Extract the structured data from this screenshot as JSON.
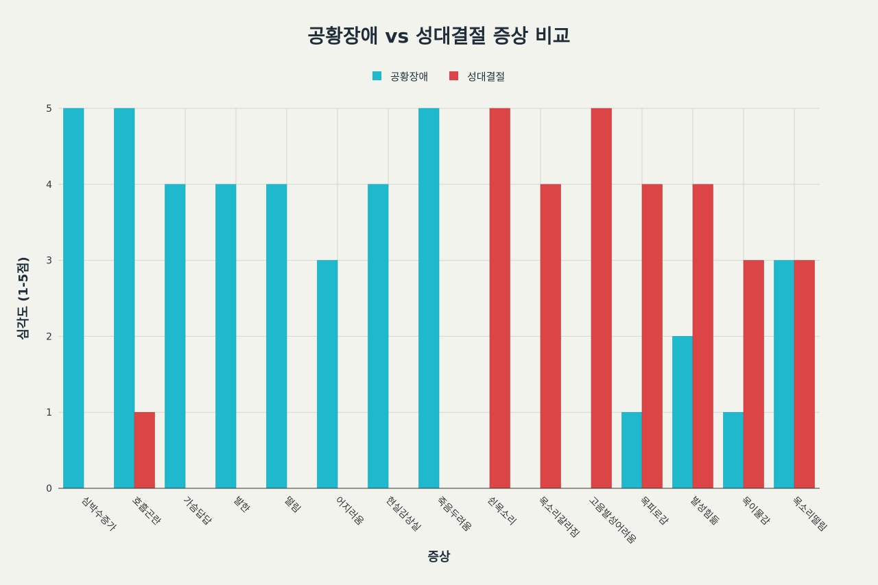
{
  "chart_data": {
    "type": "bar",
    "title": "공황장애 vs 성대결절 증상 비교",
    "xlabel": "증상",
    "ylabel": "심각도 (1-5점)",
    "ylim": [
      0,
      5
    ],
    "yticks": [
      0,
      1,
      2,
      3,
      4,
      5
    ],
    "grid": true,
    "legend_position": "top-center",
    "categories": [
      "심박수증가",
      "호흡곤란",
      "가슴답답",
      "발한",
      "떨림",
      "어지러움",
      "현실감상실",
      "죽음두려움",
      "쉰목소리",
      "목소리갈라짐",
      "고음발성어려움",
      "목피로감",
      "발성힘듦",
      "목이물감",
      "목소리떨림"
    ],
    "series": [
      {
        "name": "공황장애",
        "color": "#1fb8cd",
        "values": [
          5,
          5,
          4,
          4,
          4,
          3,
          4,
          5,
          0,
          0,
          0,
          1,
          2,
          1,
          3
        ]
      },
      {
        "name": "성대결절",
        "color": "#db4545",
        "values": [
          0,
          1,
          0,
          0,
          0,
          0,
          0,
          0,
          5,
          4,
          5,
          4,
          4,
          3,
          3
        ]
      }
    ]
  }
}
